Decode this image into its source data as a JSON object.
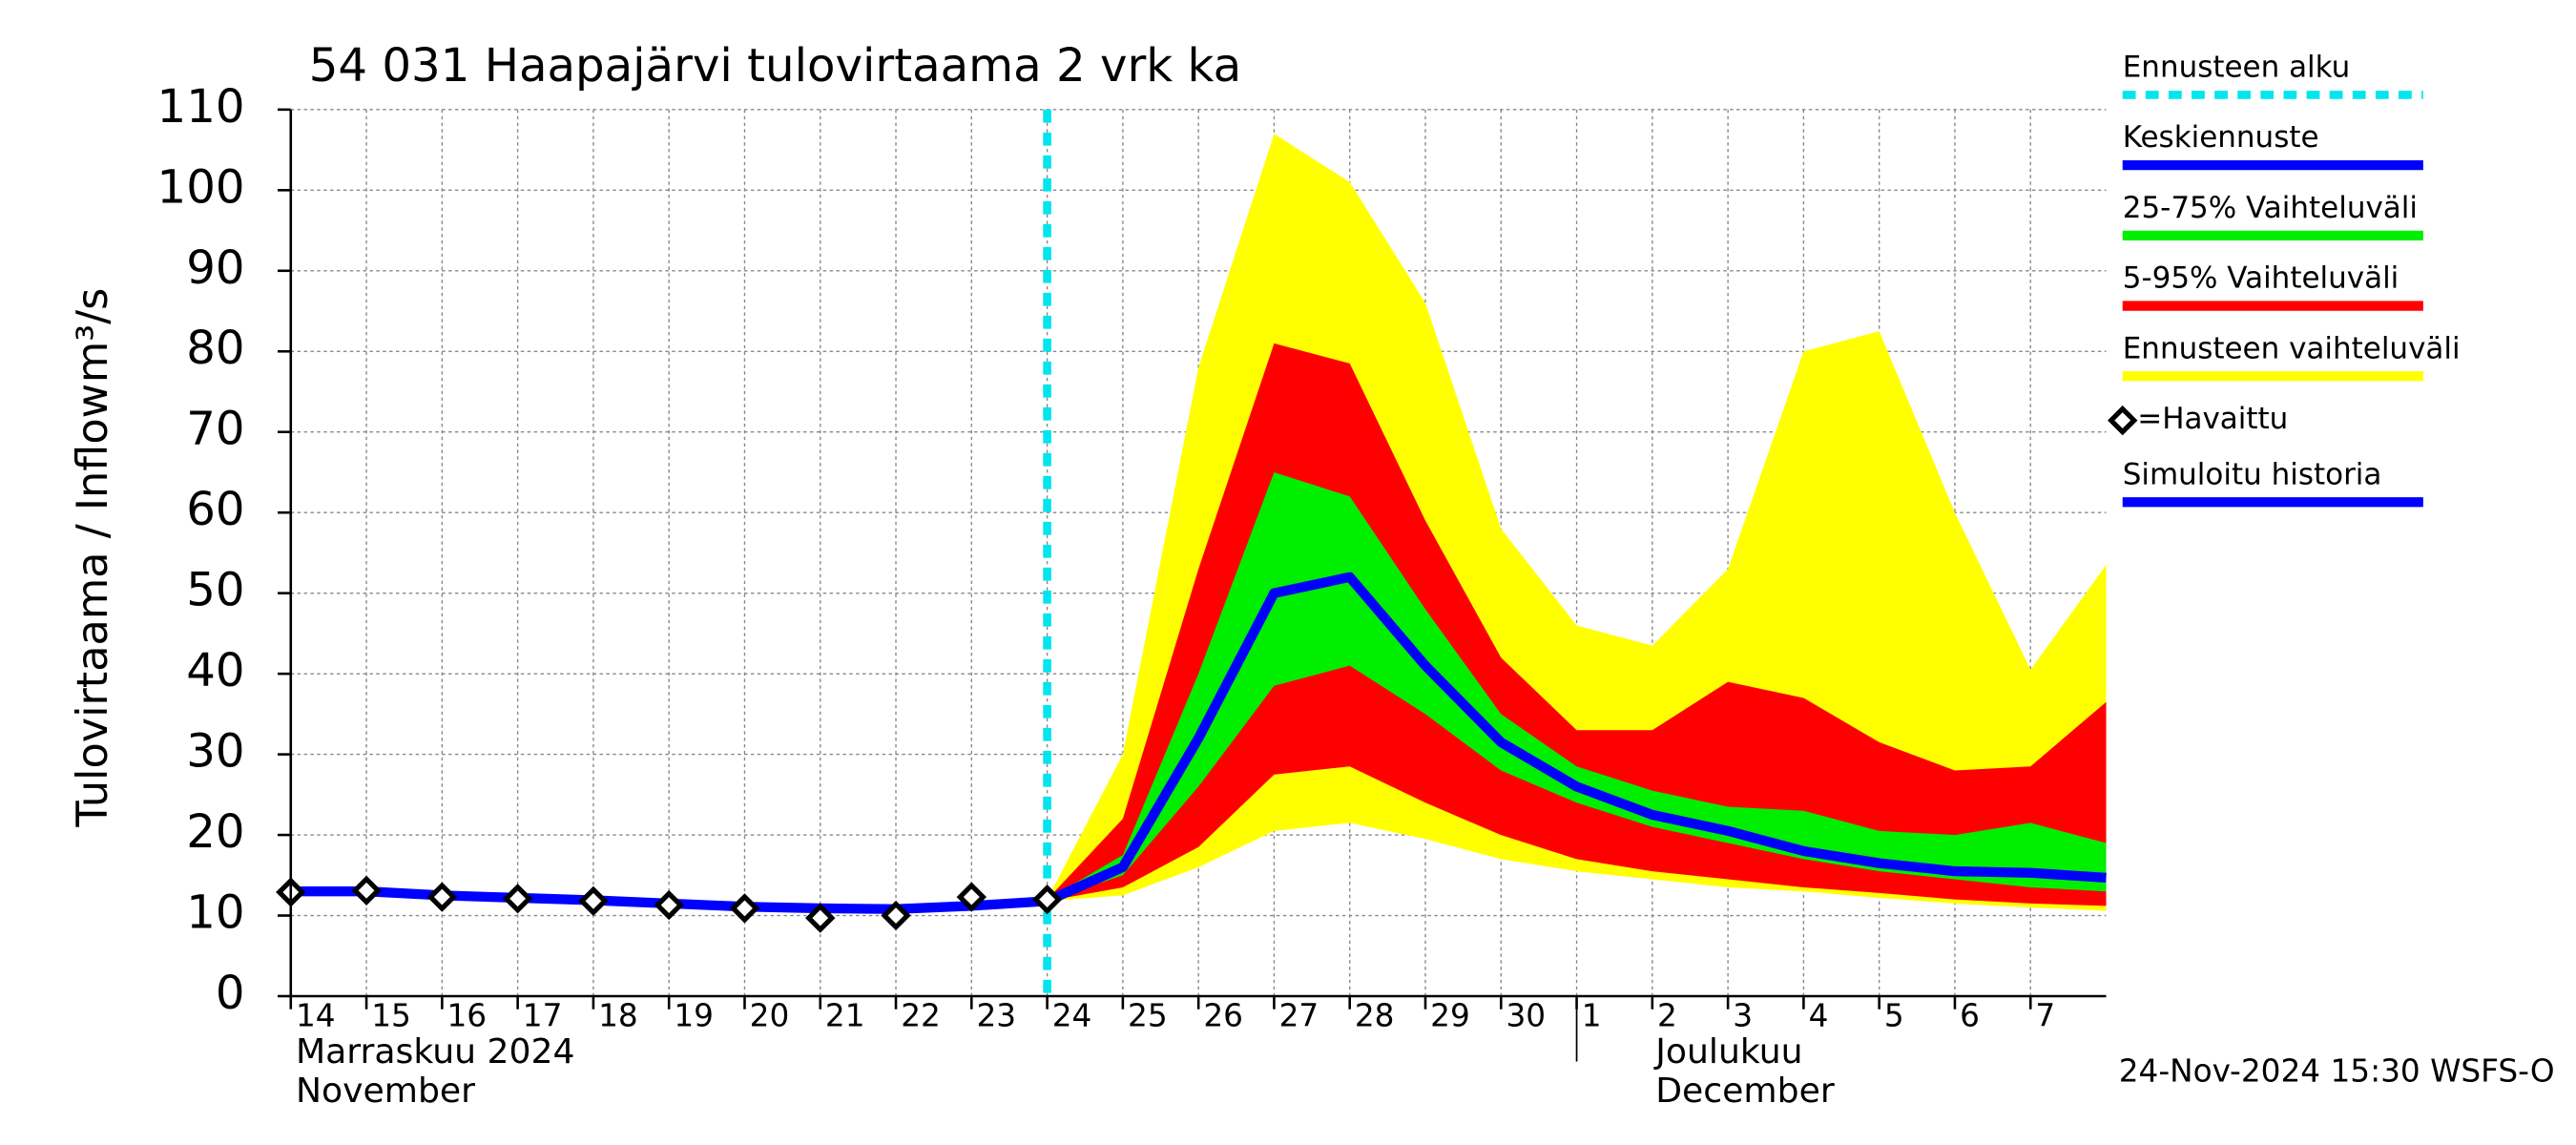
{
  "chart_data": {
    "type": "line",
    "title": "54 031 Haapajärvi tulovirtaama 2 vrk ka",
    "y_label": "Tulovirtaama / Inflow",
    "y_unit": "m³/s",
    "ylim": [
      0,
      110
    ],
    "yticks": [
      0,
      10,
      20,
      30,
      40,
      50,
      60,
      70,
      80,
      90,
      100,
      110
    ],
    "xlim": [
      "2024-11-14",
      "2024-12-08"
    ],
    "xticks": [
      {
        "value": "2024-11-14",
        "label": "14"
      },
      {
        "value": "2024-11-15",
        "label": "15"
      },
      {
        "value": "2024-11-16",
        "label": "16"
      },
      {
        "value": "2024-11-17",
        "label": "17"
      },
      {
        "value": "2024-11-18",
        "label": "18"
      },
      {
        "value": "2024-11-19",
        "label": "19"
      },
      {
        "value": "2024-11-20",
        "label": "20"
      },
      {
        "value": "2024-11-21",
        "label": "21"
      },
      {
        "value": "2024-11-22",
        "label": "22"
      },
      {
        "value": "2024-11-23",
        "label": "23"
      },
      {
        "value": "2024-11-24",
        "label": "24"
      },
      {
        "value": "2024-11-25",
        "label": "25"
      },
      {
        "value": "2024-11-26",
        "label": "26"
      },
      {
        "value": "2024-11-27",
        "label": "27"
      },
      {
        "value": "2024-11-28",
        "label": "28"
      },
      {
        "value": "2024-11-29",
        "label": "29"
      },
      {
        "value": "2024-11-30",
        "label": "30"
      },
      {
        "value": "2024-12-01",
        "label": "1"
      },
      {
        "value": "2024-12-02",
        "label": "2"
      },
      {
        "value": "2024-12-03",
        "label": "3"
      },
      {
        "value": "2024-12-04",
        "label": "4"
      },
      {
        "value": "2024-12-05",
        "label": "5"
      },
      {
        "value": "2024-12-06",
        "label": "6"
      },
      {
        "value": "2024-12-07",
        "label": "7"
      }
    ],
    "grid": true,
    "months": [
      {
        "x": "2024-11-14",
        "label": "Marraskuu 2024",
        "label_en": "November"
      },
      {
        "x": "2024-12-01",
        "label": "Joulukuu",
        "label_en": "December"
      }
    ],
    "forecast_start": {
      "name": "Ennusteen alku",
      "color": "#00e5ee",
      "x": "2024-11-24"
    },
    "series": [
      {
        "name": "Keskiennuste",
        "color": "#0000ff",
        "kind": "line",
        "x": [
          "2024-11-24",
          "2024-11-25",
          "2024-11-26",
          "2024-11-27",
          "2024-11-28",
          "2024-11-29",
          "2024-11-30",
          "2024-12-01",
          "2024-12-02",
          "2024-12-03",
          "2024-12-04",
          "2024-12-05",
          "2024-12-06",
          "2024-12-07",
          "2024-12-08"
        ],
        "values": [
          11.8,
          16,
          32,
          50,
          52,
          41,
          31.5,
          26,
          22.5,
          20.5,
          18,
          16.5,
          15.5,
          15.3,
          14.7
        ]
      },
      {
        "name": "25-75% Vaihteluväli",
        "color": "#00ee00",
        "kind": "band",
        "x": [
          "2024-11-24",
          "2024-11-25",
          "2024-11-26",
          "2024-11-27",
          "2024-11-28",
          "2024-11-29",
          "2024-11-30",
          "2024-12-01",
          "2024-12-02",
          "2024-12-03",
          "2024-12-04",
          "2024-12-05",
          "2024-12-06",
          "2024-12-07",
          "2024-12-08"
        ],
        "lower": [
          11.8,
          15,
          26,
          38.5,
          41,
          35,
          28,
          24,
          21,
          19,
          17,
          15.5,
          14.5,
          13.5,
          13
        ],
        "upper": [
          12,
          17.5,
          40,
          65,
          62,
          48,
          35,
          28.5,
          25.5,
          23.5,
          23,
          20.5,
          20,
          21.5,
          19
        ]
      },
      {
        "name": "5-95% Vaihteluväli",
        "color": "#ff0000",
        "kind": "band",
        "x": [
          "2024-11-24",
          "2024-11-25",
          "2024-11-26",
          "2024-11-27",
          "2024-11-28",
          "2024-11-29",
          "2024-11-30",
          "2024-12-01",
          "2024-12-02",
          "2024-12-03",
          "2024-12-04",
          "2024-12-05",
          "2024-12-06",
          "2024-12-07",
          "2024-12-08"
        ],
        "lower": [
          11.8,
          13.5,
          18.5,
          27.5,
          28.5,
          24,
          20,
          17,
          15.5,
          14.5,
          13.5,
          12.8,
          12,
          11.5,
          11.2
        ],
        "upper": [
          12,
          22,
          53,
          81,
          78.5,
          59,
          42,
          33,
          33,
          39,
          37,
          31.5,
          28,
          28.5,
          36.5
        ]
      },
      {
        "name": "Ennusteen vaihteluväli",
        "color": "#ffff00",
        "kind": "band",
        "x": [
          "2024-11-24",
          "2024-11-25",
          "2024-11-26",
          "2024-11-27",
          "2024-11-28",
          "2024-11-29",
          "2024-11-30",
          "2024-12-01",
          "2024-12-02",
          "2024-12-03",
          "2024-12-04",
          "2024-12-05",
          "2024-12-06",
          "2024-12-07",
          "2024-12-08"
        ],
        "lower": [
          11.8,
          12.5,
          16,
          20.5,
          21.5,
          19.5,
          17,
          15.5,
          14.5,
          13.5,
          13,
          12.2,
          11.5,
          11,
          10.6
        ],
        "upper": [
          12,
          30,
          78,
          107,
          101,
          86,
          58,
          46,
          43.5,
          53,
          80,
          82.5,
          60,
          40.5,
          53.5
        ]
      },
      {
        "name": "=Havaittu",
        "color": "#000000",
        "kind": "marker",
        "x": [
          "2024-11-14",
          "2024-11-15",
          "2024-11-16",
          "2024-11-17",
          "2024-11-18",
          "2024-11-19",
          "2024-11-20",
          "2024-11-21",
          "2024-11-22",
          "2024-11-23",
          "2024-11-24"
        ],
        "values": [
          12.9,
          13.1,
          12.3,
          12.1,
          11.8,
          11.3,
          10.9,
          9.7,
          10.0,
          12.3,
          12.0
        ]
      },
      {
        "name": "Simuloitu historia",
        "color": "#0000ff",
        "kind": "line",
        "x": [
          "2024-11-14",
          "2024-11-15",
          "2024-11-16",
          "2024-11-17",
          "2024-11-18",
          "2024-11-19",
          "2024-11-20",
          "2024-11-21",
          "2024-11-22",
          "2024-11-23",
          "2024-11-24"
        ],
        "values": [
          13,
          13,
          12.5,
          12.2,
          11.9,
          11.5,
          11.1,
          10.9,
          10.8,
          11.2,
          11.8
        ]
      }
    ],
    "footer": "24-Nov-2024 15:30 WSFS-O"
  }
}
